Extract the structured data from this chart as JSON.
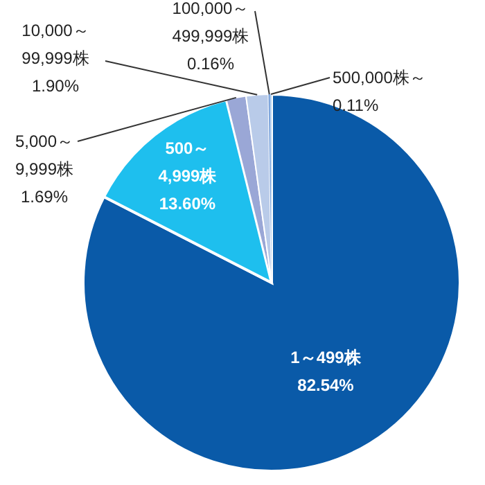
{
  "chart_data": {
    "type": "pie",
    "categories": [
      "1～499株",
      "500～\n4,999株",
      "5,000～\n9,999株",
      "10,000～\n99,999株",
      "100,000～\n499,999株",
      "500,000株～"
    ],
    "values": [
      82.54,
      13.6,
      1.69,
      1.9,
      0.16,
      0.11
    ],
    "value_labels": [
      "82.54%",
      "13.60%",
      "1.69%",
      "1.90%",
      "0.16%",
      "0.11%"
    ],
    "colors": [
      "#0a5aa8",
      "#1ebfee",
      "#9aa7d6",
      "#b9cbe9",
      "#7fa6dc",
      "#b6d3f0"
    ]
  }
}
